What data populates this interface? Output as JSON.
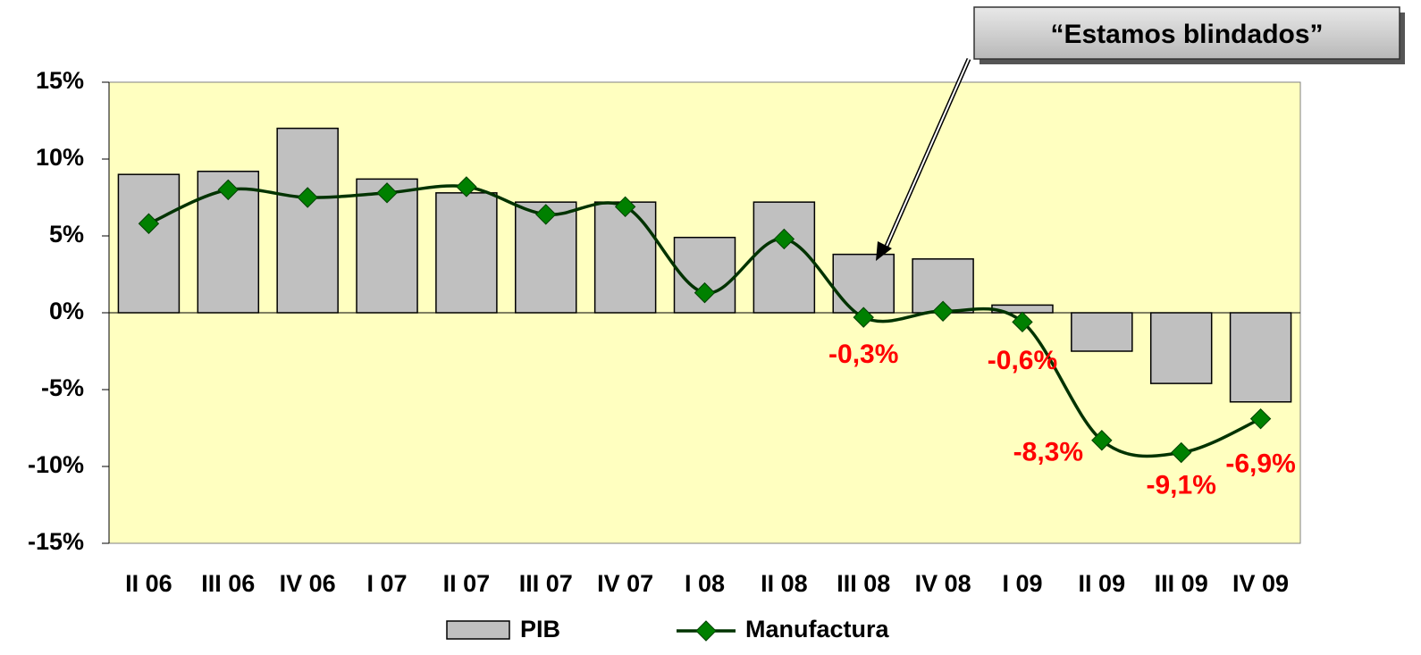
{
  "chart_data": {
    "type": "bar_line",
    "annotation": "“Estamos blindados”",
    "categories": [
      "II 06",
      "III 06",
      "IV 06",
      "I 07",
      "II 07",
      "III 07",
      "IV 07",
      "I 08",
      "II 08",
      "III 08",
      "IV 08",
      "I 09",
      "II 09",
      "III 09",
      "IV 09"
    ],
    "series": [
      {
        "name": "PIB",
        "type": "bar",
        "color": "#c0c0c0",
        "values": [
          9.0,
          9.2,
          12.0,
          8.7,
          7.8,
          7.2,
          7.2,
          4.9,
          7.2,
          3.8,
          3.5,
          0.5,
          -2.5,
          -4.6,
          -5.8
        ]
      },
      {
        "name": "Manufactura",
        "type": "line",
        "color": "#003300",
        "marker_color": "#008000",
        "values": [
          5.8,
          8.0,
          7.5,
          7.8,
          8.2,
          6.4,
          6.9,
          1.3,
          4.8,
          -0.3,
          0.1,
          -0.6,
          -8.3,
          -9.1,
          -6.9
        ],
        "value_labels": [
          null,
          null,
          null,
          null,
          null,
          null,
          null,
          null,
          null,
          "-0,3%",
          null,
          "-0,6%",
          "-8,3%",
          "-9,1%",
          "-6,9%"
        ]
      }
    ],
    "ylim": [
      -15,
      15
    ],
    "yticks": [
      {
        "value": -15,
        "label": "-15%"
      },
      {
        "value": -10,
        "label": "-10%"
      },
      {
        "value": -5,
        "label": "-5%"
      },
      {
        "value": 0,
        "label": "0%"
      },
      {
        "value": 5,
        "label": "5%"
      },
      {
        "value": 10,
        "label": "10%"
      },
      {
        "value": 15,
        "label": "15%"
      }
    ],
    "plot_background": "#ffffc0"
  }
}
